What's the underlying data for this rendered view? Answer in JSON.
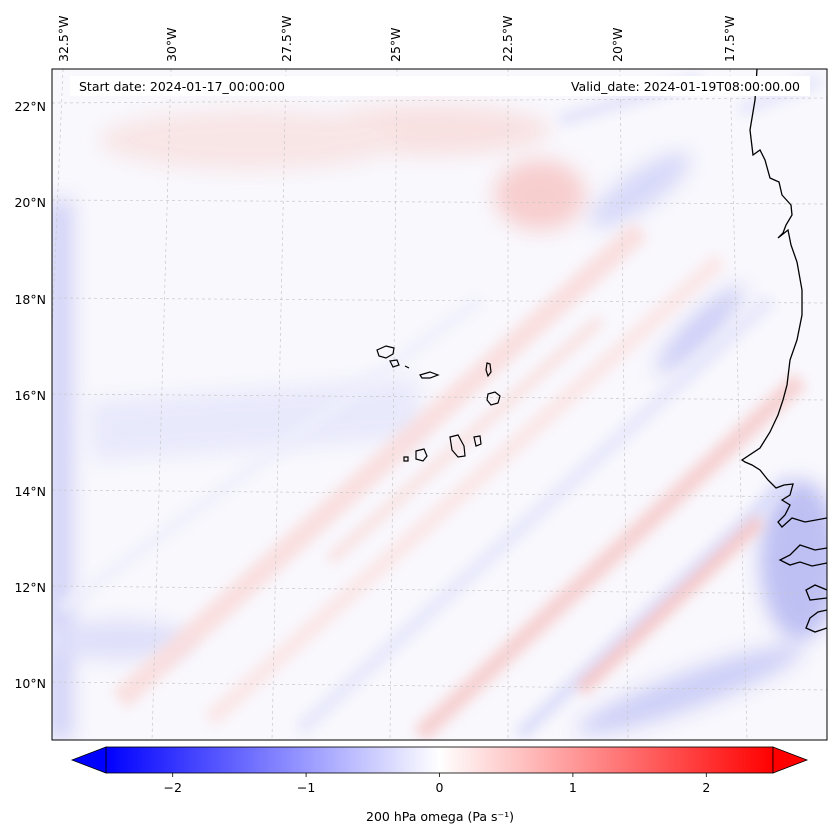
{
  "header": {
    "start_date": "Start date: 2024-01-17_00:00:00",
    "valid_date": "Valid_date: 2024-01-19T08:00:00.00"
  },
  "map": {
    "lon_labels": [
      {
        "lon": -32.5,
        "text": "32.5°W"
      },
      {
        "lon": -30.0,
        "text": "30°W"
      },
      {
        "lon": -27.5,
        "text": "27.5°W"
      },
      {
        "lon": -25.0,
        "text": "25°W"
      },
      {
        "lon": -22.5,
        "text": "22.5°W"
      },
      {
        "lon": -20.0,
        "text": "20°W"
      },
      {
        "lon": -17.5,
        "text": "17.5°W"
      }
    ],
    "lat_labels": [
      {
        "lat": 22,
        "text": "22°N"
      },
      {
        "lat": 20,
        "text": "20°N"
      },
      {
        "lat": 18,
        "text": "18°N"
      },
      {
        "lat": 16,
        "text": "16°N"
      },
      {
        "lat": 14,
        "text": "14°N"
      },
      {
        "lat": 12,
        "text": "12°N"
      },
      {
        "lat": 10,
        "text": "10°N"
      }
    ],
    "extent": {
      "lon_min": -32.7,
      "lon_max": -16.3,
      "lat_min": 8.9,
      "lat_max": 22.8
    },
    "field_name": "200 hPa omega",
    "features": [
      "Cape Verde islands",
      "West African coastline",
      "diagonal SW-NE bands of alternating positive/negative omega"
    ]
  },
  "colorbar": {
    "cmap": "bwr",
    "vmin": -2.5,
    "vmax": 2.5,
    "extend": "both",
    "ticks": [
      {
        "value": -2,
        "text": "−2"
      },
      {
        "value": -1,
        "text": "−1"
      },
      {
        "value": 0,
        "text": "0"
      },
      {
        "value": 1,
        "text": "1"
      },
      {
        "value": 2,
        "text": "2"
      }
    ],
    "label": "200 hPa omega (Pa s⁻¹)",
    "colors": {
      "neg": "#0000ff",
      "mid": "#ffffff",
      "pos": "#ff0000"
    }
  }
}
